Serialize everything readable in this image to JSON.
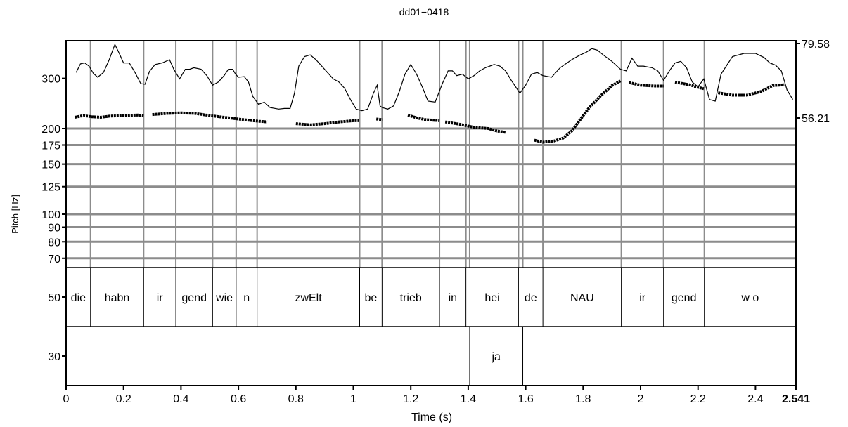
{
  "chart_data": {
    "type": "line",
    "title": "dd01−0418",
    "xlabel": "Time (s)",
    "ylabel": "Pitch [Hz]",
    "xlim": [
      0,
      2.541
    ],
    "x_ticks": [
      {
        "v": 0,
        "label": "0"
      },
      {
        "v": 0.2,
        "label": "0.2"
      },
      {
        "v": 0.4,
        "label": "0.4"
      },
      {
        "v": 0.6,
        "label": "0.6"
      },
      {
        "v": 0.8,
        "label": "0.8"
      },
      {
        "v": 1,
        "label": "1"
      },
      {
        "v": 1.2,
        "label": "1.2"
      },
      {
        "v": 1.4,
        "label": "1.4"
      },
      {
        "v": 1.6,
        "label": "1.6"
      },
      {
        "v": 1.8,
        "label": "1.8"
      },
      {
        "v": 2,
        "label": "2"
      },
      {
        "v": 2.2,
        "label": "2.2"
      },
      {
        "v": 2.4,
        "label": "2.4"
      },
      {
        "v": 2.541,
        "label": "2.541",
        "bold": true
      }
    ],
    "y_pitch": {
      "scale": "log",
      "gridlines": [
        70,
        80,
        90,
        100,
        125,
        150,
        175,
        200
      ],
      "tick_labels": [
        {
          "v": 300,
          "label": "300"
        },
        {
          "v": 200,
          "label": "200"
        },
        {
          "v": 175,
          "label": "175"
        },
        {
          "v": 150,
          "label": "150"
        },
        {
          "v": 125,
          "label": "125"
        },
        {
          "v": 100,
          "label": "100"
        },
        {
          "v": 90,
          "label": "90"
        },
        {
          "v": 80,
          "label": "80"
        },
        {
          "v": 70,
          "label": "70"
        }
      ]
    },
    "y_tier_labels": [
      {
        "tier": 0,
        "label": "50"
      },
      {
        "tier": 1,
        "label": "30"
      }
    ],
    "y_intensity": {
      "range": [
        56.21,
        79.58
      ],
      "tick_labels": [
        {
          "v": 79.58,
          "label": "79.58"
        },
        {
          "v": 56.21,
          "label": "56.21"
        }
      ]
    },
    "word_boundaries": [
      0.085,
      0.27,
      0.382,
      0.51,
      0.592,
      0.665,
      1.022,
      1.1,
      1.3,
      1.392,
      1.405,
      1.575,
      1.59,
      1.66,
      1.933,
      2.08,
      2.222
    ],
    "tiers": [
      {
        "name": "",
        "intervals": [
          {
            "start": 0,
            "end": 0.085,
            "label": "die"
          },
          {
            "start": 0.085,
            "end": 0.27,
            "label": "habn"
          },
          {
            "start": 0.27,
            "end": 0.382,
            "label": "ir"
          },
          {
            "start": 0.382,
            "end": 0.51,
            "label": "gend"
          },
          {
            "start": 0.51,
            "end": 0.592,
            "label": "wie"
          },
          {
            "start": 0.592,
            "end": 0.665,
            "label": "n"
          },
          {
            "start": 0.665,
            "end": 1.022,
            "label": "zwElt"
          },
          {
            "start": 1.022,
            "end": 1.1,
            "label": "be"
          },
          {
            "start": 1.1,
            "end": 1.3,
            "label": "trieb"
          },
          {
            "start": 1.3,
            "end": 1.392,
            "label": "in"
          },
          {
            "start": 1.392,
            "end": 1.575,
            "label": "hei"
          },
          {
            "start": 1.575,
            "end": 1.66,
            "label": "de"
          },
          {
            "start": 1.66,
            "end": 1.933,
            "label": "NAU"
          },
          {
            "start": 1.933,
            "end": 2.08,
            "label": "ir"
          },
          {
            "start": 2.08,
            "end": 2.222,
            "label": "gend"
          },
          {
            "start": 2.222,
            "end": 2.541,
            "label": "w o"
          }
        ]
      },
      {
        "name": "",
        "intervals": [
          {
            "start": 0,
            "end": 1.405,
            "label": ""
          },
          {
            "start": 1.405,
            "end": 1.59,
            "label": "ja"
          },
          {
            "start": 1.59,
            "end": 2.541,
            "label": ""
          }
        ]
      }
    ],
    "series": [
      {
        "kind": "pitch",
        "segments": [
          [
            [
              0.03,
              219
            ],
            [
              0.06,
              222
            ],
            [
              0.09,
              220
            ],
            [
              0.12,
              219
            ],
            [
              0.15,
              221
            ],
            [
              0.2,
              222
            ],
            [
              0.25,
              223
            ],
            [
              0.27,
              222
            ]
          ],
          [
            [
              0.3,
              224
            ],
            [
              0.35,
              226
            ],
            [
              0.4,
              227
            ],
            [
              0.45,
              226
            ],
            [
              0.5,
              222
            ],
            [
              0.55,
              219
            ],
            [
              0.6,
              216
            ],
            [
              0.65,
              213
            ],
            [
              0.7,
              211
            ]
          ],
          [
            [
              0.8,
              208
            ],
            [
              0.85,
              206
            ],
            [
              0.9,
              208
            ],
            [
              0.95,
              211
            ],
            [
              1.0,
              213
            ],
            [
              1.02,
              213
            ]
          ],
          [
            [
              1.08,
              216
            ],
            [
              1.1,
              215
            ]
          ],
          [
            [
              1.19,
              223
            ],
            [
              1.22,
              218
            ],
            [
              1.25,
              215
            ],
            [
              1.3,
              213
            ]
          ],
          [
            [
              1.32,
              211
            ],
            [
              1.37,
              207
            ],
            [
              1.42,
              202
            ],
            [
              1.47,
              200
            ],
            [
              1.5,
              196
            ],
            [
              1.53,
              194
            ]
          ],
          [
            [
              1.63,
              182
            ],
            [
              1.66,
              179
            ],
            [
              1.7,
              181
            ],
            [
              1.73,
              185
            ],
            [
              1.76,
              196
            ],
            [
              1.79,
              215
            ],
            [
              1.82,
              236
            ],
            [
              1.86,
              260
            ],
            [
              1.9,
              283
            ],
            [
              1.93,
              294
            ]
          ],
          [
            [
              1.96,
              290
            ],
            [
              2.0,
              284
            ],
            [
              2.05,
              282
            ],
            [
              2.08,
              282
            ]
          ],
          [
            [
              2.12,
              291
            ],
            [
              2.17,
              285
            ],
            [
              2.2,
              279
            ],
            [
              2.22,
              276
            ]
          ],
          [
            [
              2.27,
              267
            ],
            [
              2.32,
              262
            ],
            [
              2.37,
              262
            ],
            [
              2.42,
              270
            ],
            [
              2.46,
              283
            ],
            [
              2.5,
              285
            ]
          ]
        ]
      },
      {
        "kind": "intensity",
        "points": [
          [
            0.035,
            70.5
          ],
          [
            0.05,
            73.2
          ],
          [
            0.065,
            73.5
          ],
          [
            0.08,
            72.5
          ],
          [
            0.095,
            70.2
          ],
          [
            0.11,
            69
          ],
          [
            0.13,
            70.5
          ],
          [
            0.15,
            74.5
          ],
          [
            0.17,
            79.3
          ],
          [
            0.185,
            76.5
          ],
          [
            0.2,
            73.5
          ],
          [
            0.22,
            73.5
          ],
          [
            0.24,
            70.5
          ],
          [
            0.26,
            67
          ],
          [
            0.275,
            66.8
          ],
          [
            0.29,
            70.8
          ],
          [
            0.31,
            73
          ],
          [
            0.335,
            73.5
          ],
          [
            0.36,
            74.5
          ],
          [
            0.375,
            71.5
          ],
          [
            0.395,
            68.5
          ],
          [
            0.415,
            71.5
          ],
          [
            0.43,
            71.5
          ],
          [
            0.445,
            72
          ],
          [
            0.47,
            71.5
          ],
          [
            0.49,
            69.5
          ],
          [
            0.51,
            66.5
          ],
          [
            0.53,
            67.5
          ],
          [
            0.55,
            69.5
          ],
          [
            0.565,
            71.5
          ],
          [
            0.58,
            71.5
          ],
          [
            0.59,
            70
          ],
          [
            0.6,
            69
          ],
          [
            0.62,
            69.2
          ],
          [
            0.635,
            67.5
          ],
          [
            0.65,
            63
          ],
          [
            0.67,
            60.5
          ],
          [
            0.69,
            61.2
          ],
          [
            0.71,
            59.5
          ],
          [
            0.74,
            59
          ],
          [
            0.76,
            59.2
          ],
          [
            0.78,
            59.2
          ],
          [
            0.795,
            64
          ],
          [
            0.81,
            72.5
          ],
          [
            0.83,
            75.5
          ],
          [
            0.85,
            76
          ],
          [
            0.87,
            74.5
          ],
          [
            0.89,
            72.5
          ],
          [
            0.91,
            70.5
          ],
          [
            0.93,
            68.5
          ],
          [
            0.95,
            67.5
          ],
          [
            0.97,
            65.5
          ],
          [
            0.99,
            62
          ],
          [
            1.01,
            59
          ],
          [
            1.03,
            58.5
          ],
          [
            1.05,
            59
          ],
          [
            1.07,
            64
          ],
          [
            1.083,
            66.5
          ],
          [
            1.093,
            60
          ],
          [
            1.1,
            59.5
          ],
          [
            1.12,
            59
          ],
          [
            1.14,
            60
          ],
          [
            1.16,
            64.5
          ],
          [
            1.18,
            70
          ],
          [
            1.2,
            73
          ],
          [
            1.22,
            70
          ],
          [
            1.24,
            66
          ],
          [
            1.26,
            61.5
          ],
          [
            1.285,
            61.2
          ],
          [
            1.31,
            67
          ],
          [
            1.33,
            71
          ],
          [
            1.345,
            71
          ],
          [
            1.36,
            69.5
          ],
          [
            1.38,
            70
          ],
          [
            1.4,
            68.5
          ],
          [
            1.42,
            69.5
          ],
          [
            1.44,
            71
          ],
          [
            1.46,
            72
          ],
          [
            1.49,
            73
          ],
          [
            1.51,
            72.5
          ],
          [
            1.53,
            71
          ],
          [
            1.55,
            68
          ],
          [
            1.58,
            64
          ],
          [
            1.6,
            66.5
          ],
          [
            1.62,
            70
          ],
          [
            1.64,
            70.5
          ],
          [
            1.66,
            69.5
          ],
          [
            1.69,
            69
          ],
          [
            1.72,
            72
          ],
          [
            1.76,
            74.5
          ],
          [
            1.79,
            76
          ],
          [
            1.81,
            76.8
          ],
          [
            1.83,
            78
          ],
          [
            1.85,
            77.5
          ],
          [
            1.87,
            76
          ],
          [
            1.9,
            74
          ],
          [
            1.93,
            71.5
          ],
          [
            1.95,
            71
          ],
          [
            1.97,
            75
          ],
          [
            1.99,
            72.5
          ],
          [
            2.01,
            72.5
          ],
          [
            2.04,
            72
          ],
          [
            2.06,
            71
          ],
          [
            2.08,
            68
          ],
          [
            2.1,
            71
          ],
          [
            2.12,
            73.5
          ],
          [
            2.14,
            74
          ],
          [
            2.16,
            72
          ],
          [
            2.18,
            67.5
          ],
          [
            2.2,
            66
          ],
          [
            2.22,
            68.5
          ],
          [
            2.24,
            62
          ],
          [
            2.26,
            61.5
          ],
          [
            2.28,
            70
          ],
          [
            2.32,
            75.5
          ],
          [
            2.36,
            76.5
          ],
          [
            2.4,
            76.5
          ],
          [
            2.43,
            75.2
          ],
          [
            2.45,
            73.5
          ],
          [
            2.47,
            72.8
          ],
          [
            2.49,
            71
          ],
          [
            2.51,
            65
          ],
          [
            2.53,
            62
          ]
        ]
      }
    ],
    "grid": true
  }
}
